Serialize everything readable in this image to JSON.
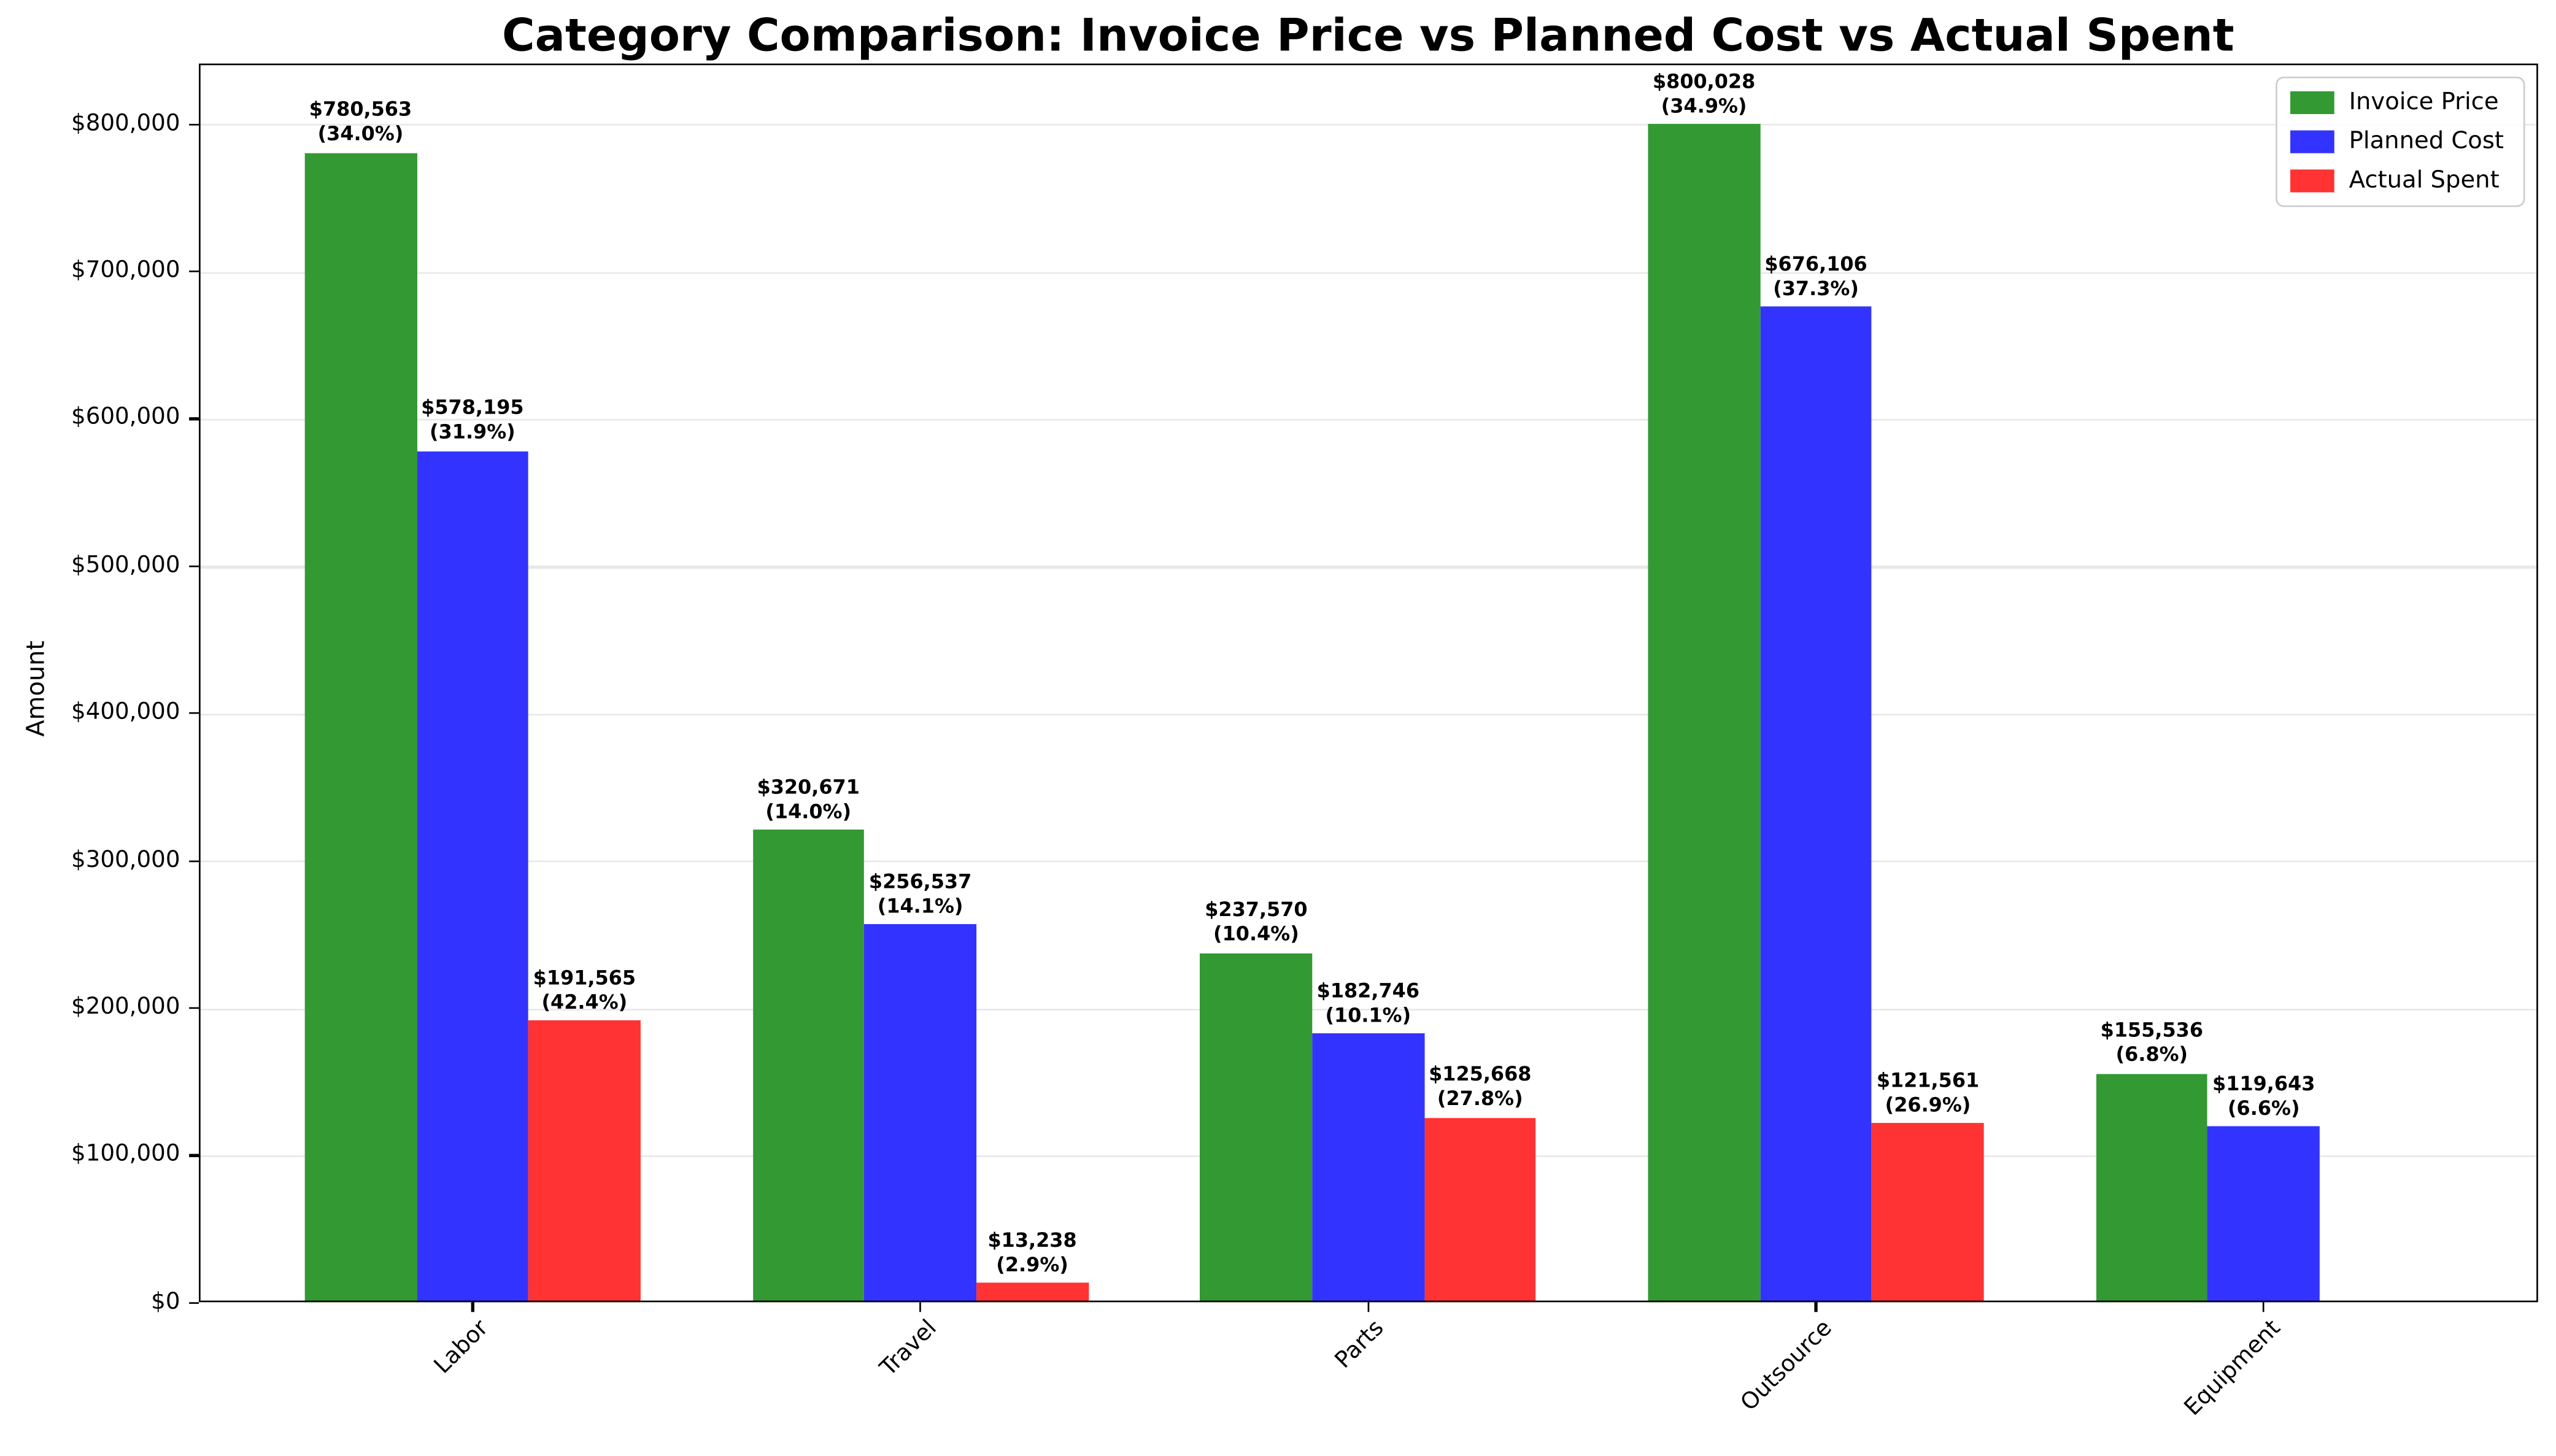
{
  "chart_data": {
    "type": "bar",
    "title": "Category Comparison: Invoice Price vs Planned Cost vs Actual Spent",
    "xlabel": "",
    "ylabel": "Amount",
    "categories": [
      "Labor",
      "Travel",
      "Parts",
      "Outsource",
      "Equipment"
    ],
    "series": [
      {
        "name": "Invoice Price",
        "color": "#339933",
        "values": [
          780563,
          320671,
          237570,
          800028,
          155536
        ],
        "labels": [
          "$780,563",
          "$320,671",
          "$237,570",
          "$800,028",
          "$155,536"
        ],
        "pcts": [
          "(34.0%)",
          "(14.0%)",
          "(10.4%)",
          "(34.9%)",
          "(6.8%)"
        ]
      },
      {
        "name": "Planned Cost",
        "color": "#3333ff",
        "values": [
          578195,
          256537,
          182746,
          676106,
          119643
        ],
        "labels": [
          "$578,195",
          "$256,537",
          "$182,746",
          "$676,106",
          "$119,643"
        ],
        "pcts": [
          "(31.9%)",
          "(14.1%)",
          "(10.1%)",
          "(37.3%)",
          "(6.6%)"
        ]
      },
      {
        "name": "Actual Spent",
        "color": "#ff3333",
        "values": [
          191565,
          13238,
          125668,
          121561,
          null
        ],
        "labels": [
          "$191,565",
          "$13,238",
          "$125,668",
          "$121,561",
          null
        ],
        "pcts": [
          "(42.4%)",
          "(2.9%)",
          "(27.8%)",
          "(26.9%)",
          null
        ]
      }
    ],
    "yticks": [
      {
        "value": 0,
        "label": "$0"
      },
      {
        "value": 100000,
        "label": "$100,000"
      },
      {
        "value": 200000,
        "label": "$200,000"
      },
      {
        "value": 300000,
        "label": "$300,000"
      },
      {
        "value": 400000,
        "label": "$400,000"
      },
      {
        "value": 500000,
        "label": "$500,000"
      },
      {
        "value": 600000,
        "label": "$600,000"
      },
      {
        "value": 700000,
        "label": "$700,000"
      },
      {
        "value": 800000,
        "label": "$800,000"
      }
    ],
    "ylim": [
      0,
      841400
    ],
    "grid": "horizontal",
    "grid_color": "#e8e8e8",
    "spine_color": "#000000",
    "legend_position": "top-right",
    "legend_border_color": "#cccccc"
  }
}
